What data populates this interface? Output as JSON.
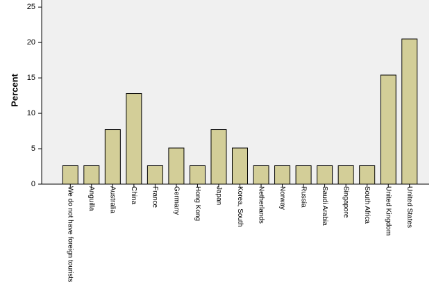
{
  "chart_data": {
    "type": "bar",
    "y_label": "Percent",
    "categories": [
      "We do not have foreign tourists",
      "Anguilla",
      "Australia",
      "China",
      "France",
      "Germany",
      "Hong Kong",
      "Japan",
      "Korea, South",
      "Netherlands",
      "Norway",
      "Russia",
      "Saudi Arabia",
      "Singapore",
      "South Africa",
      "United Kingdom",
      "United States"
    ],
    "values": [
      2.6,
      2.6,
      7.7,
      12.8,
      2.6,
      5.1,
      2.6,
      7.7,
      5.1,
      2.6,
      2.6,
      2.6,
      2.6,
      2.6,
      2.6,
      15.4,
      20.5
    ],
    "color": "#d3ce98",
    "ylim": [
      0,
      26
    ],
    "yticks": [
      0,
      5,
      10,
      15,
      20,
      25
    ],
    "grid": false
  }
}
